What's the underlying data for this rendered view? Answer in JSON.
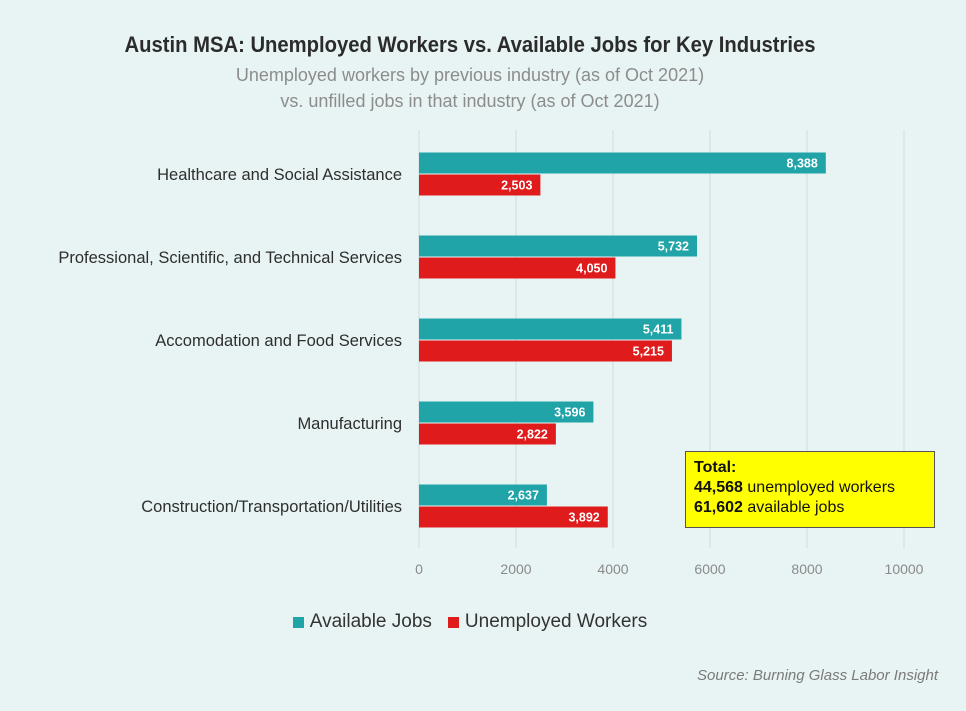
{
  "title": "Austin MSA: Unemployed Workers vs. Available Jobs for Key Industries",
  "subtitle_line1": "Unemployed workers by previous industry (as of Oct 2021)",
  "subtitle_line2": "vs. unfilled jobs in that industry (as of Oct 2021)",
  "legend": {
    "available_label": "Available Jobs",
    "unemployed_label": "Unemployed Workers"
  },
  "totals": {
    "heading": "Total:",
    "unemployed_value": "44,568",
    "unemployed_text": "unemployed workers",
    "available_value": "61,602",
    "available_text": "available jobs"
  },
  "source": "Source: Burning Glass Labor Insight",
  "colors": {
    "available": "#21a4a8",
    "unemployed": "#e01b1b",
    "background": "#e8f4f4",
    "grid": "#cfdcdc"
  },
  "chart_data": {
    "type": "bar",
    "orientation": "horizontal",
    "title": "Austin MSA: Unemployed Workers vs. Available Jobs for Key Industries",
    "categories": [
      "Healthcare and Social Assistance",
      "Professional, Scientific, and Technical Services",
      "Accomodation and Food Services",
      "Manufacturing",
      "Construction/Transportation/Utilities"
    ],
    "series": [
      {
        "name": "Available Jobs",
        "values": [
          8388,
          5732,
          5411,
          3596,
          2637
        ],
        "labels": [
          "8,388",
          "5,732",
          "5,411",
          "3,596",
          "2,637"
        ]
      },
      {
        "name": "Unemployed Workers",
        "values": [
          2503,
          4050,
          5215,
          2822,
          3892
        ],
        "labels": [
          "2,503",
          "4,050",
          "5,215",
          "2,822",
          "3,892"
        ]
      }
    ],
    "xlim": [
      0,
      10000
    ],
    "xticks": [
      0,
      2000,
      4000,
      6000,
      8000,
      10000
    ],
    "grid": true,
    "legend_position": "bottom"
  }
}
